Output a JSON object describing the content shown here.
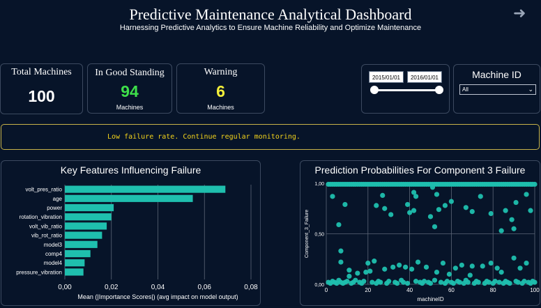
{
  "header": {
    "title": "Predictive Maintenance Analytical Dashboard",
    "subtitle": "Harnessing Predictive Analytics to Ensure Machine Reliability and Optimize Maintenance"
  },
  "kpis": {
    "total": {
      "label": "Total Machines",
      "value": "100"
    },
    "good": {
      "label": "In Good Standing",
      "value": "94",
      "unit": "Machines",
      "color": "#3ee04a"
    },
    "warning": {
      "label": "Warning",
      "value": "6",
      "unit": "Machines",
      "color": "#f4f03a"
    }
  },
  "date_filter": {
    "start": "2015/01/01",
    "end": "2016/01/01",
    "range_fraction": [
      0.0,
      1.0
    ]
  },
  "machine_filter": {
    "label": "Machine ID",
    "selected": "All"
  },
  "alert": {
    "message": "Low failure rate. Continue regular monitoring.",
    "color": "#f2d21b"
  },
  "accent_color": "#1fbfae",
  "chart_data": [
    {
      "type": "bar",
      "orientation": "horizontal",
      "title": "Key Features Influencing Failure",
      "xlabel": "Mean (|Importance Scores|) (avg impact on model output)",
      "categories": [
        "volt_pres_ratio",
        "age",
        "power",
        "rotation_vibration",
        "volt_vib_ratio",
        "vib_rot_ratio",
        "model3",
        "comp4",
        "model4",
        "pressure_vibration"
      ],
      "values": [
        0.069,
        0.055,
        0.021,
        0.02,
        0.018,
        0.016,
        0.014,
        0.011,
        0.0085,
        0.008
      ],
      "xlim": [
        0,
        0.08
      ],
      "xticks": [
        "0,00",
        "0,02",
        "0,04",
        "0,06",
        "0,08"
      ],
      "xtick_values": [
        0,
        0.02,
        0.04,
        0.06,
        0.08
      ],
      "grid": true
    },
    {
      "type": "scatter",
      "title": "Prediction Probabilities For Component 3 Failure",
      "xlabel": "machineID",
      "ylabel": "Component_3_Failure",
      "xlim": [
        0,
        100
      ],
      "ylim": [
        0,
        1
      ],
      "xticks": [
        "0",
        "20",
        "40",
        "60",
        "80",
        "100"
      ],
      "xtick_values": [
        0,
        20,
        40,
        60,
        80,
        100
      ],
      "yticks": [
        "0,00",
        "0,50",
        "1,00"
      ],
      "ytick_values": [
        0,
        0.5,
        1
      ],
      "grid": true,
      "points": [
        [
          1,
          0.99
        ],
        [
          2,
          0.99
        ],
        [
          3,
          0.99
        ],
        [
          4,
          0.99
        ],
        [
          5,
          0.99
        ],
        [
          6,
          0.99
        ],
        [
          7,
          0.99
        ],
        [
          8,
          0.99
        ],
        [
          9,
          0.99
        ],
        [
          10,
          0.99
        ],
        [
          11,
          0.99
        ],
        [
          12,
          0.99
        ],
        [
          13,
          0.99
        ],
        [
          14,
          0.99
        ],
        [
          15,
          0.99
        ],
        [
          16,
          0.99
        ],
        [
          17,
          0.99
        ],
        [
          18,
          0.99
        ],
        [
          19,
          0.99
        ],
        [
          20,
          0.99
        ],
        [
          21,
          0.99
        ],
        [
          22,
          0.99
        ],
        [
          23,
          0.99
        ],
        [
          24,
          0.99
        ],
        [
          25,
          0.99
        ],
        [
          26,
          0.99
        ],
        [
          27,
          0.99
        ],
        [
          28,
          0.99
        ],
        [
          29,
          0.99
        ],
        [
          30,
          0.99
        ],
        [
          31,
          0.99
        ],
        [
          32,
          0.99
        ],
        [
          33,
          0.99
        ],
        [
          34,
          0.99
        ],
        [
          35,
          0.99
        ],
        [
          36,
          0.99
        ],
        [
          37,
          0.99
        ],
        [
          38,
          0.99
        ],
        [
          39,
          0.99
        ],
        [
          40,
          0.99
        ],
        [
          41,
          0.99
        ],
        [
          42,
          0.99
        ],
        [
          43,
          0.99
        ],
        [
          44,
          0.99
        ],
        [
          45,
          0.99
        ],
        [
          46,
          0.99
        ],
        [
          47,
          0.99
        ],
        [
          48,
          0.99
        ],
        [
          49,
          0.99
        ],
        [
          50,
          0.99
        ],
        [
          51,
          0.99
        ],
        [
          52,
          0.99
        ],
        [
          53,
          0.99
        ],
        [
          54,
          0.99
        ],
        [
          55,
          0.99
        ],
        [
          56,
          0.99
        ],
        [
          57,
          0.99
        ],
        [
          58,
          0.99
        ],
        [
          59,
          0.99
        ],
        [
          60,
          0.99
        ],
        [
          61,
          0.99
        ],
        [
          62,
          0.99
        ],
        [
          63,
          0.99
        ],
        [
          64,
          0.99
        ],
        [
          65,
          0.99
        ],
        [
          66,
          0.99
        ],
        [
          67,
          0.99
        ],
        [
          68,
          0.99
        ],
        [
          69,
          0.99
        ],
        [
          70,
          0.99
        ],
        [
          71,
          0.99
        ],
        [
          72,
          0.99
        ],
        [
          73,
          0.99
        ],
        [
          74,
          0.99
        ],
        [
          75,
          0.99
        ],
        [
          76,
          0.99
        ],
        [
          77,
          0.99
        ],
        [
          78,
          0.99
        ],
        [
          79,
          0.99
        ],
        [
          80,
          0.99
        ],
        [
          81,
          0.99
        ],
        [
          82,
          0.99
        ],
        [
          83,
          0.99
        ],
        [
          84,
          0.99
        ],
        [
          85,
          0.99
        ],
        [
          86,
          0.99
        ],
        [
          87,
          0.99
        ],
        [
          88,
          0.99
        ],
        [
          89,
          0.99
        ],
        [
          90,
          0.99
        ],
        [
          91,
          0.99
        ],
        [
          92,
          0.99
        ],
        [
          93,
          0.99
        ],
        [
          94,
          0.99
        ],
        [
          95,
          0.99
        ],
        [
          96,
          0.99
        ],
        [
          97,
          0.99
        ],
        [
          98,
          0.99
        ],
        [
          99,
          0.99
        ],
        [
          100,
          0.99
        ],
        [
          3,
          0.87
        ],
        [
          9,
          0.79
        ],
        [
          6,
          0.59
        ],
        [
          24,
          0.78
        ],
        [
          27,
          0.88
        ],
        [
          28,
          0.75
        ],
        [
          31,
          0.69
        ],
        [
          39,
          0.79
        ],
        [
          42,
          0.91
        ],
        [
          43,
          0.87
        ],
        [
          42,
          0.73
        ],
        [
          40,
          0.71
        ],
        [
          51,
          0.96
        ],
        [
          53,
          0.89
        ],
        [
          52,
          0.57
        ],
        [
          57,
          0.78
        ],
        [
          54,
          0.74
        ],
        [
          50,
          0.67
        ],
        [
          60,
          0.82
        ],
        [
          67,
          0.76
        ],
        [
          70,
          0.72
        ],
        [
          74,
          0.87
        ],
        [
          79,
          0.7
        ],
        [
          84,
          0.53
        ],
        [
          86,
          0.73
        ],
        [
          91,
          0.81
        ],
        [
          89,
          0.64
        ],
        [
          96,
          0.89
        ],
        [
          98,
          0.73
        ],
        [
          90,
          0.55
        ],
        [
          7,
          0.33
        ],
        [
          7,
          0.22
        ],
        [
          11,
          0.14
        ],
        [
          15,
          0.11
        ],
        [
          21,
          0.13
        ],
        [
          20,
          0.21
        ],
        [
          23,
          0.23
        ],
        [
          19,
          0.12
        ],
        [
          28,
          0.15
        ],
        [
          32,
          0.17
        ],
        [
          35,
          0.19
        ],
        [
          38,
          0.17
        ],
        [
          41,
          0.15
        ],
        [
          44,
          0.22
        ],
        [
          48,
          0.17
        ],
        [
          53,
          0.12
        ],
        [
          56,
          0.21
        ],
        [
          59,
          0.1
        ],
        [
          62,
          0.16
        ],
        [
          65,
          0.19
        ],
        [
          70,
          0.18
        ],
        [
          75,
          0.18
        ],
        [
          79,
          0.21
        ],
        [
          82,
          0.16
        ],
        [
          84,
          0.12
        ],
        [
          90,
          0.26
        ],
        [
          93,
          0.16
        ],
        [
          96,
          0.21
        ],
        [
          69,
          0.09
        ],
        [
          11,
          0.08
        ],
        [
          1,
          0.02
        ],
        [
          2,
          0.01
        ],
        [
          3,
          0.03
        ],
        [
          4,
          0.02
        ],
        [
          5,
          0.01
        ],
        [
          6,
          0.04
        ],
        [
          7,
          0.02
        ],
        [
          8,
          0.01
        ],
        [
          9,
          0.02
        ],
        [
          10,
          0.03
        ],
        [
          12,
          0.01
        ],
        [
          13,
          0.02
        ],
        [
          14,
          0.04
        ],
        [
          16,
          0.02
        ],
        [
          17,
          0.01
        ],
        [
          18,
          0.03
        ],
        [
          22,
          0.02
        ],
        [
          24,
          0.01
        ],
        [
          25,
          0.03
        ],
        [
          26,
          0.02
        ],
        [
          29,
          0.01
        ],
        [
          30,
          0.03
        ],
        [
          33,
          0.02
        ],
        [
          34,
          0.01
        ],
        [
          36,
          0.04
        ],
        [
          37,
          0.02
        ],
        [
          39,
          0.01
        ],
        [
          43,
          0.03
        ],
        [
          45,
          0.02
        ],
        [
          46,
          0.01
        ],
        [
          47,
          0.03
        ],
        [
          49,
          0.02
        ],
        [
          50,
          0.01
        ],
        [
          52,
          0.04
        ],
        [
          55,
          0.02
        ],
        [
          57,
          0.01
        ],
        [
          58,
          0.03
        ],
        [
          60,
          0.02
        ],
        [
          61,
          0.01
        ],
        [
          63,
          0.03
        ],
        [
          64,
          0.02
        ],
        [
          66,
          0.01
        ],
        [
          67,
          0.04
        ],
        [
          68,
          0.02
        ],
        [
          71,
          0.01
        ],
        [
          72,
          0.03
        ],
        [
          73,
          0.02
        ],
        [
          76,
          0.01
        ],
        [
          77,
          0.03
        ],
        [
          78,
          0.02
        ],
        [
          80,
          0.01
        ],
        [
          81,
          0.03
        ],
        [
          83,
          0.02
        ],
        [
          85,
          0.01
        ],
        [
          86,
          0.03
        ],
        [
          87,
          0.02
        ],
        [
          88,
          0.01
        ],
        [
          91,
          0.03
        ],
        [
          92,
          0.02
        ],
        [
          94,
          0.01
        ],
        [
          95,
          0.03
        ],
        [
          97,
          0.02
        ],
        [
          98,
          0.01
        ],
        [
          99,
          0.03
        ],
        [
          100,
          0.02
        ]
      ]
    }
  ]
}
